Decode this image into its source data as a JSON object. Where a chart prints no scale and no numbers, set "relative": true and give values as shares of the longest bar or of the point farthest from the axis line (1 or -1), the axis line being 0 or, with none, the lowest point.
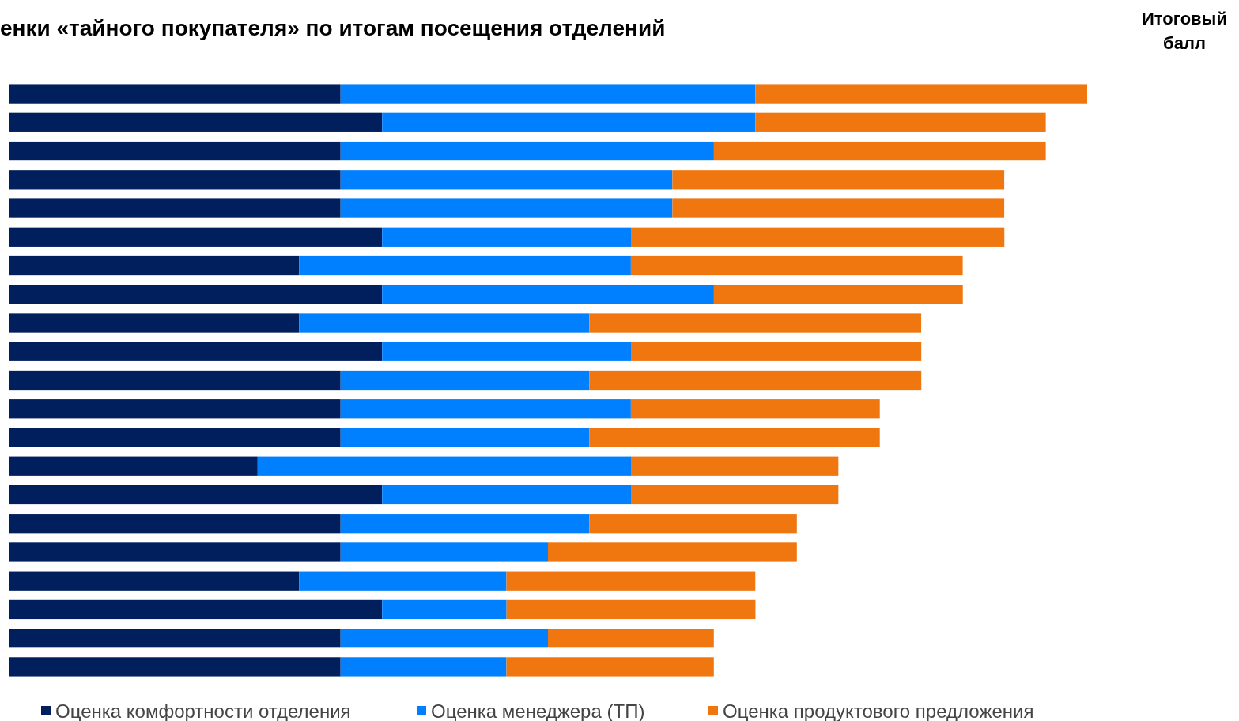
{
  "chart_data": {
    "type": "bar",
    "orientation": "horizontal",
    "stacked": true,
    "relative": true,
    "title": "енки «тайного покупателя» по итогам посещения отделений",
    "annotations": [
      "Итоговый балл"
    ],
    "categories": [
      null,
      null,
      null,
      null,
      null,
      null,
      null,
      null,
      null,
      null,
      null,
      null,
      null,
      null,
      null,
      null,
      null,
      null,
      null,
      null,
      null
    ],
    "series": [
      {
        "name": "Оценка комфортности отделения",
        "color": "#001f5c",
        "values": [
          0.3077,
          0.3462,
          0.3077,
          0.3077,
          0.3077,
          0.3462,
          0.2692,
          0.3462,
          0.2692,
          0.3462,
          0.3077,
          0.3077,
          0.3077,
          0.2308,
          0.3462,
          0.3077,
          0.3077,
          0.2692,
          0.3462,
          0.3077,
          0.3077
        ]
      },
      {
        "name": "Оценка менеджера (ТП)",
        "color": "#0080ff",
        "values": [
          0.3846,
          0.3462,
          0.3462,
          0.3077,
          0.3077,
          0.2308,
          0.3077,
          0.3077,
          0.2692,
          0.2308,
          0.2308,
          0.2692,
          0.2308,
          0.3462,
          0.2308,
          0.2308,
          0.1923,
          0.1923,
          0.1154,
          0.1923,
          0.1538
        ]
      },
      {
        "name": "Оценка продуктового предложения",
        "color": "#f0760f",
        "values": [
          0.3077,
          0.2692,
          0.3077,
          0.3077,
          0.3077,
          0.3462,
          0.3077,
          0.2308,
          0.3077,
          0.2692,
          0.3077,
          0.2308,
          0.2692,
          0.1923,
          0.1923,
          0.1923,
          0.2308,
          0.2308,
          0.2308,
          0.1538,
          0.1923
        ]
      }
    ],
    "legend": "bottom"
  }
}
